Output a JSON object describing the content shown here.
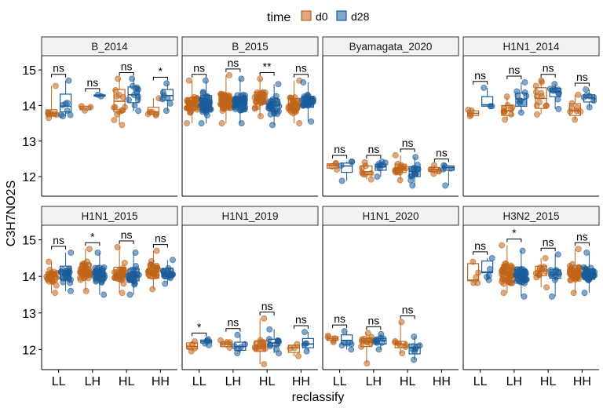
{
  "chart_data": {
    "type": "boxplot_jitter_faceted",
    "title": "",
    "xlabel": "reclassify",
    "ylabel": "C3H7NO2S",
    "legend": {
      "title": "time",
      "position": "top",
      "entries": [
        {
          "name": "d0",
          "color": "#C0651A"
        },
        {
          "name": "d28",
          "color": "#1B5C9A"
        }
      ]
    },
    "categories": [
      "LL",
      "LH",
      "HL",
      "HH"
    ],
    "ylim": [
      11.45,
      15.4
    ],
    "yticks": [
      12,
      13,
      14,
      15
    ],
    "facet_rows": 2,
    "facet_cols": 4,
    "panels": [
      {
        "label": "B_2014",
        "sig": [
          "ns",
          "ns",
          "ns",
          "*"
        ],
        "box": {
          "LL": {
            "d0": {
              "q1": 13.72,
              "med": 13.78,
              "q3": 13.88,
              "n": 8,
              "lo": 13.65,
              "hi": 14.55
            },
            "d28": {
              "q1": 13.82,
              "med": 13.98,
              "q3": 14.32,
              "n": 8,
              "lo": 13.7,
              "hi": 14.7
            }
          },
          "LH": {
            "d0": {
              "q1": 13.88,
              "med": 13.93,
              "q3": 13.98,
              "n": 3,
              "lo": 13.86,
              "hi": 13.98
            },
            "d28": {
              "q1": 14.26,
              "med": 14.28,
              "q3": 14.3,
              "n": 2,
              "lo": 14.26,
              "hi": 14.3
            }
          },
          "HL": {
            "d0": {
              "q1": 13.82,
              "med": 14.12,
              "q3": 14.45,
              "n": 14,
              "lo": 13.45,
              "hi": 14.75
            },
            "d28": {
              "q1": 14.08,
              "med": 14.3,
              "q3": 14.52,
              "n": 12,
              "lo": 13.85,
              "hi": 14.75
            }
          },
          "HH": {
            "d0": {
              "q1": 13.75,
              "med": 13.82,
              "q3": 13.95,
              "n": 6,
              "lo": 13.72,
              "hi": 14.2
            },
            "d28": {
              "q1": 14.15,
              "med": 14.28,
              "q3": 14.45,
              "n": 7,
              "lo": 13.85,
              "hi": 14.62
            }
          }
        }
      },
      {
        "label": "B_2015",
        "sig": [
          "ns",
          "ns",
          "**",
          "ns"
        ],
        "box": {
          "LL": {
            "d0": {
              "q1": 13.9,
              "med": 14.05,
              "q3": 14.22,
              "n": 40,
              "lo": 13.5,
              "hi": 14.7
            },
            "d28": {
              "q1": 13.88,
              "med": 14.05,
              "q3": 14.28,
              "n": 40,
              "lo": 13.5,
              "hi": 14.7
            }
          },
          "LH": {
            "d0": {
              "q1": 13.95,
              "med": 14.1,
              "q3": 14.32,
              "n": 55,
              "lo": 13.5,
              "hi": 14.85
            },
            "d28": {
              "q1": 13.95,
              "med": 14.08,
              "q3": 14.25,
              "n": 55,
              "lo": 13.5,
              "hi": 14.75
            }
          },
          "HL": {
            "d0": {
              "q1": 14.05,
              "med": 14.2,
              "q3": 14.38,
              "n": 30,
              "lo": 13.7,
              "hi": 14.75
            },
            "d28": {
              "q1": 13.85,
              "med": 14.0,
              "q3": 14.18,
              "n": 30,
              "lo": 13.45,
              "hi": 14.6
            }
          },
          "HH": {
            "d0": {
              "q1": 13.88,
              "med": 14.02,
              "q3": 14.2,
              "n": 35,
              "lo": 13.5,
              "hi": 14.7
            },
            "d28": {
              "q1": 13.95,
              "med": 14.1,
              "q3": 14.25,
              "n": 35,
              "lo": 13.55,
              "hi": 14.65
            }
          }
        }
      },
      {
        "label": "Byamagata_2020",
        "sig": [
          "ns",
          "ns",
          "ns",
          "ns"
        ],
        "box": {
          "LL": {
            "d0": {
              "q1": 12.24,
              "med": 12.32,
              "q3": 12.36,
              "n": 4,
              "lo": 12.2,
              "hi": 12.38
            },
            "d28": {
              "q1": 12.12,
              "med": 12.3,
              "q3": 12.38,
              "n": 4,
              "lo": 11.88,
              "hi": 12.42
            }
          },
          "LH": {
            "d0": {
              "q1": 12.06,
              "med": 12.14,
              "q3": 12.3,
              "n": 8,
              "lo": 11.92,
              "hi": 12.4
            },
            "d28": {
              "q1": 12.18,
              "med": 12.28,
              "q3": 12.35,
              "n": 8,
              "lo": 12.0,
              "hi": 12.42
            }
          },
          "HL": {
            "d0": {
              "q1": 12.12,
              "med": 12.25,
              "q3": 12.35,
              "n": 16,
              "lo": 11.9,
              "hi": 12.6
            },
            "d28": {
              "q1": 12.0,
              "med": 12.15,
              "q3": 12.28,
              "n": 16,
              "lo": 11.75,
              "hi": 12.55
            }
          },
          "HH": {
            "d0": {
              "q1": 12.15,
              "med": 12.2,
              "q3": 12.26,
              "n": 6,
              "lo": 12.08,
              "hi": 12.32
            },
            "d28": {
              "q1": 12.18,
              "med": 12.25,
              "q3": 12.3,
              "n": 5,
              "lo": 11.75,
              "hi": 12.32
            }
          }
        }
      },
      {
        "label": "H1N1_2014",
        "sig": [
          "ns",
          "ns",
          "ns",
          "ns"
        ],
        "box": {
          "LL": {
            "d0": {
              "q1": 13.72,
              "med": 13.78,
              "q3": 13.85,
              "n": 4,
              "lo": 13.7,
              "hi": 13.88
            },
            "d28": {
              "q1": 13.98,
              "med": 14.02,
              "q3": 14.25,
              "n": 3,
              "lo": 13.98,
              "hi": 14.5
            }
          },
          "LH": {
            "d0": {
              "q1": 13.72,
              "med": 13.85,
              "q3": 14.0,
              "n": 10,
              "lo": 13.6,
              "hi": 14.25
            },
            "d28": {
              "q1": 13.98,
              "med": 14.18,
              "q3": 14.35,
              "n": 10,
              "lo": 13.8,
              "hi": 14.65
            }
          },
          "HL": {
            "d0": {
              "q1": 13.92,
              "med": 14.2,
              "q3": 14.5,
              "n": 12,
              "lo": 13.75,
              "hi": 14.7
            },
            "d28": {
              "q1": 14.25,
              "med": 14.38,
              "q3": 14.48,
              "n": 10,
              "lo": 13.9,
              "hi": 14.6
            }
          },
          "HH": {
            "d0": {
              "q1": 13.72,
              "med": 13.85,
              "q3": 14.05,
              "n": 8,
              "lo": 13.6,
              "hi": 14.3
            },
            "d28": {
              "q1": 14.1,
              "med": 14.22,
              "q3": 14.3,
              "n": 7,
              "lo": 13.95,
              "hi": 14.45
            }
          }
        }
      },
      {
        "label": "H1N1_2015",
        "sig": [
          "ns",
          "*",
          "ns",
          "ns"
        ],
        "box": {
          "LL": {
            "d0": {
              "q1": 13.85,
              "med": 14.0,
              "q3": 14.12,
              "n": 28,
              "lo": 13.55,
              "hi": 14.4
            },
            "d28": {
              "q1": 13.92,
              "med": 14.05,
              "q3": 14.28,
              "n": 28,
              "lo": 13.6,
              "hi": 14.65
            }
          },
          "LH": {
            "d0": {
              "q1": 14.0,
              "med": 14.15,
              "q3": 14.35,
              "n": 40,
              "lo": 13.6,
              "hi": 14.75
            },
            "d28": {
              "q1": 13.9,
              "med": 14.05,
              "q3": 14.2,
              "n": 40,
              "lo": 13.5,
              "hi": 14.65
            }
          },
          "HL": {
            "d0": {
              "q1": 13.9,
              "med": 14.05,
              "q3": 14.25,
              "n": 35,
              "lo": 13.55,
              "hi": 14.8
            },
            "d28": {
              "q1": 13.88,
              "med": 14.02,
              "q3": 14.2,
              "n": 35,
              "lo": 13.5,
              "hi": 14.65
            }
          },
          "HH": {
            "d0": {
              "q1": 13.95,
              "med": 14.12,
              "q3": 14.3,
              "n": 28,
              "lo": 13.65,
              "hi": 14.7
            },
            "d28": {
              "q1": 14.0,
              "med": 14.1,
              "q3": 14.22,
              "n": 22,
              "lo": 13.8,
              "hi": 14.45
            }
          }
        }
      },
      {
        "label": "H1N1_2019",
        "sig": [
          "*",
          "ns",
          "ns",
          "ns"
        ],
        "box": {
          "LL": {
            "d0": {
              "q1": 12.02,
              "med": 12.08,
              "q3": 12.18,
              "n": 5,
              "lo": 11.95,
              "hi": 12.22
            },
            "d28": {
              "q1": 12.18,
              "med": 12.22,
              "q3": 12.26,
              "n": 5,
              "lo": 12.12,
              "hi": 12.28
            }
          },
          "LH": {
            "d0": {
              "q1": 12.08,
              "med": 12.15,
              "q3": 12.2,
              "n": 5,
              "lo": 12.05,
              "hi": 12.25
            },
            "d28": {
              "q1": 11.98,
              "med": 12.08,
              "q3": 12.2,
              "n": 6,
              "lo": 11.9,
              "hi": 12.4
            }
          },
          "HL": {
            "d0": {
              "q1": 11.95,
              "med": 12.1,
              "q3": 12.22,
              "n": 15,
              "lo": 11.6,
              "hi": 12.85
            },
            "d28": {
              "q1": 12.1,
              "med": 12.18,
              "q3": 12.28,
              "n": 12,
              "lo": 11.9,
              "hi": 12.55
            }
          },
          "HH": {
            "d0": {
              "q1": 11.92,
              "med": 12.05,
              "q3": 12.12,
              "n": 4,
              "lo": 11.82,
              "hi": 12.15
            },
            "d28": {
              "q1": 12.05,
              "med": 12.15,
              "q3": 12.3,
              "n": 5,
              "lo": 11.95,
              "hi": 12.48
            }
          }
        }
      },
      {
        "label": "H1N1_2020",
        "sig": [
          "ns",
          "ns",
          "ns",
          ""
        ],
        "box": {
          "LL": {
            "d0": {
              "q1": 12.25,
              "med": 12.3,
              "q3": 12.35,
              "n": 5,
              "lo": 12.2,
              "hi": 12.38
            },
            "d28": {
              "q1": 12.15,
              "med": 12.25,
              "q3": 12.4,
              "n": 6,
              "lo": 12.0,
              "hi": 12.5
            }
          },
          "LH": {
            "d0": {
              "q1": 12.08,
              "med": 12.2,
              "q3": 12.3,
              "n": 12,
              "lo": 11.62,
              "hi": 12.45
            },
            "d28": {
              "q1": 12.15,
              "med": 12.25,
              "q3": 12.3,
              "n": 10,
              "lo": 12.0,
              "hi": 12.42
            }
          },
          "HL": {
            "d0": {
              "q1": 12.05,
              "med": 12.15,
              "q3": 12.22,
              "n": 8,
              "lo": 11.9,
              "hi": 12.75
            },
            "d28": {
              "q1": 11.88,
              "med": 12.05,
              "q3": 12.15,
              "n": 8,
              "lo": 11.72,
              "hi": 12.35
            }
          },
          "HH": null
        }
      },
      {
        "label": "H3N2_2015",
        "sig": [
          "ns",
          "*",
          "ns",
          "ns"
        ],
        "box": {
          "LL": {
            "d0": {
              "q1": 13.88,
              "med": 13.9,
              "q3": 14.35,
              "n": 5,
              "lo": 13.82,
              "hi": 14.4
            },
            "d28": {
              "q1": 14.1,
              "med": 14.12,
              "q3": 14.42,
              "n": 5,
              "lo": 13.9,
              "hi": 14.5
            }
          },
          "LH": {
            "d0": {
              "q1": 13.95,
              "med": 14.1,
              "q3": 14.32,
              "n": 45,
              "lo": 13.55,
              "hi": 14.85
            },
            "d28": {
              "q1": 13.88,
              "med": 14.02,
              "q3": 14.18,
              "n": 45,
              "lo": 13.45,
              "hi": 14.7
            }
          },
          "HL": {
            "d0": {
              "q1": 14.02,
              "med": 14.15,
              "q3": 14.28,
              "n": 12,
              "lo": 13.7,
              "hi": 14.5
            },
            "d28": {
              "q1": 13.95,
              "med": 14.05,
              "q3": 14.18,
              "n": 12,
              "lo": 13.45,
              "hi": 14.6
            }
          },
          "HH": {
            "d0": {
              "q1": 13.98,
              "med": 14.1,
              "q3": 14.3,
              "n": 40,
              "lo": 13.55,
              "hi": 14.75
            },
            "d28": {
              "q1": 13.92,
              "med": 14.05,
              "q3": 14.2,
              "n": 40,
              "lo": 13.55,
              "hi": 14.65
            }
          }
        }
      }
    ]
  }
}
